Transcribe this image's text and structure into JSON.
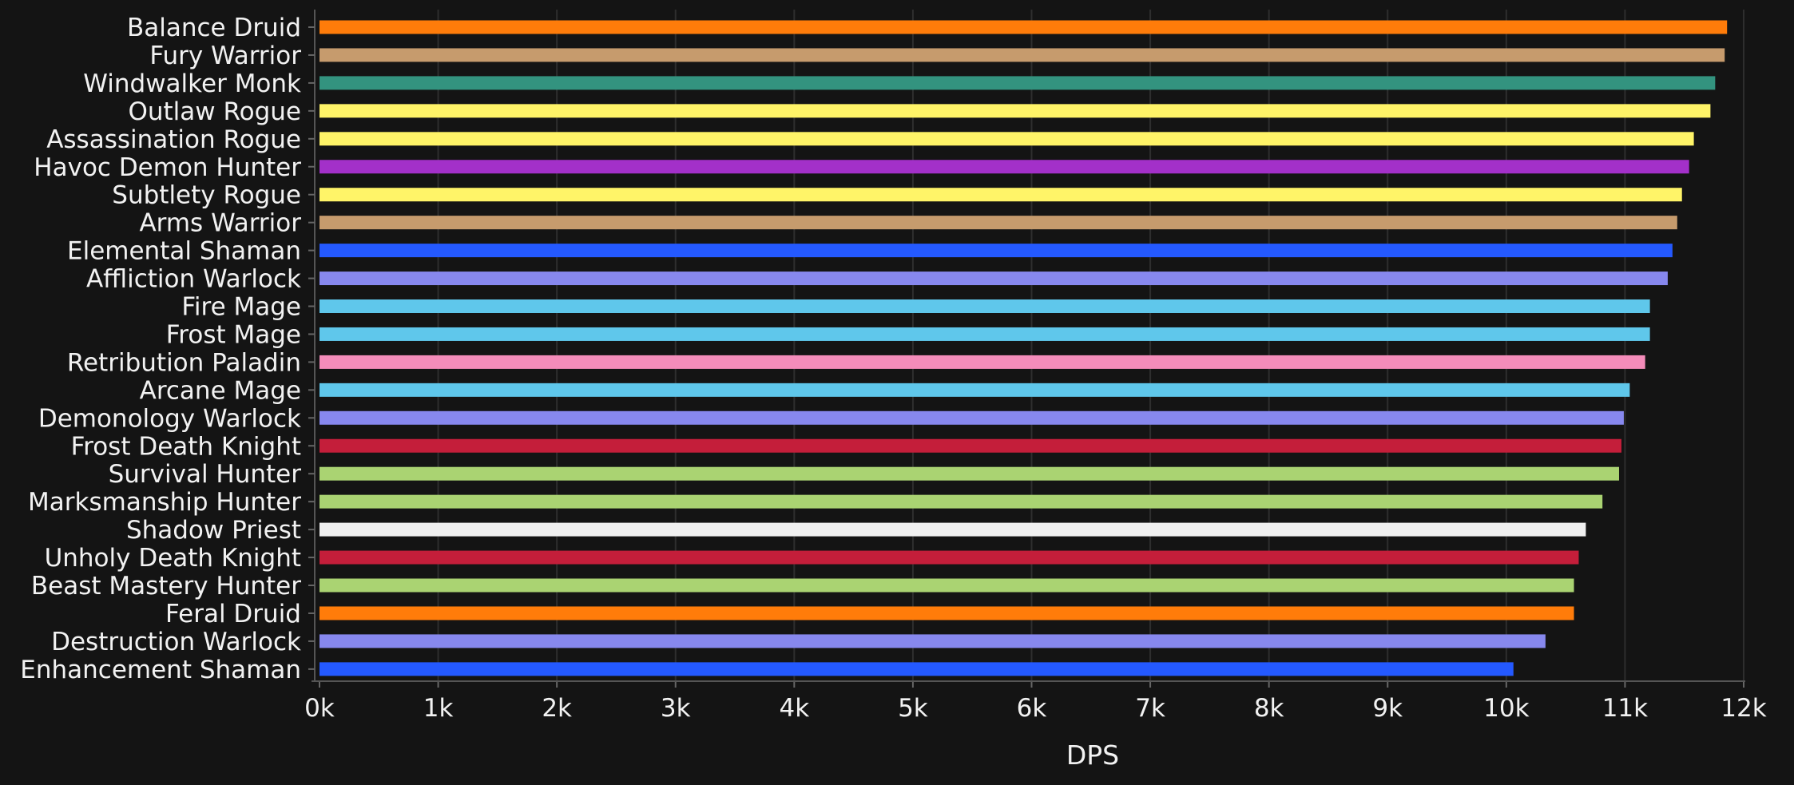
{
  "chart_data": {
    "type": "bar",
    "orientation": "horizontal",
    "title": "",
    "xlabel": "DPS",
    "ylabel": "",
    "xlim": [
      0,
      12000
    ],
    "x_ticks": [
      0,
      1000,
      2000,
      3000,
      4000,
      5000,
      6000,
      7000,
      8000,
      9000,
      10000,
      11000,
      12000
    ],
    "x_tick_labels": [
      "0k",
      "1k",
      "2k",
      "3k",
      "4k",
      "5k",
      "6k",
      "7k",
      "8k",
      "9k",
      "10k",
      "11k",
      "12k"
    ],
    "grid": true,
    "legend": "none",
    "background_color": "#141414",
    "grid_color": "#2e2e2e",
    "text_color": "#f2f2f2",
    "categories": [
      "Balance Druid",
      "Fury Warrior",
      "Windwalker Monk",
      "Outlaw Rogue",
      "Assassination Rogue",
      "Havoc Demon Hunter",
      "Subtlety Rogue",
      "Arms Warrior",
      "Elemental Shaman",
      "Affliction Warlock",
      "Fire Mage",
      "Frost Mage",
      "Retribution Paladin",
      "Arcane Mage",
      "Demonology Warlock",
      "Frost Death Knight",
      "Survival Hunter",
      "Marksmanship Hunter",
      "Shadow Priest",
      "Unholy Death Knight",
      "Beast Mastery Hunter",
      "Feral Druid",
      "Destruction Warlock",
      "Enhancement Shaman"
    ],
    "values": [
      11860,
      11840,
      11760,
      11720,
      11580,
      11540,
      11480,
      11440,
      11400,
      11360,
      11210,
      11210,
      11170,
      11040,
      10990,
      10970,
      10950,
      10810,
      10670,
      10610,
      10570,
      10570,
      10330,
      10060
    ],
    "colors": [
      "#FF7C0A",
      "#C69B6D",
      "#33937F",
      "#FFF468",
      "#FFF468",
      "#A330C9",
      "#FFF468",
      "#C69B6D",
      "#2459FF",
      "#8788EE",
      "#5FC7EB",
      "#5FC7EB",
      "#F48CBA",
      "#5FC7EB",
      "#8788EE",
      "#C41E3A",
      "#AAD372",
      "#AAD372",
      "#F0F0F0",
      "#C41E3A",
      "#AAD372",
      "#FF7C0A",
      "#8788EE",
      "#2459FF"
    ]
  }
}
